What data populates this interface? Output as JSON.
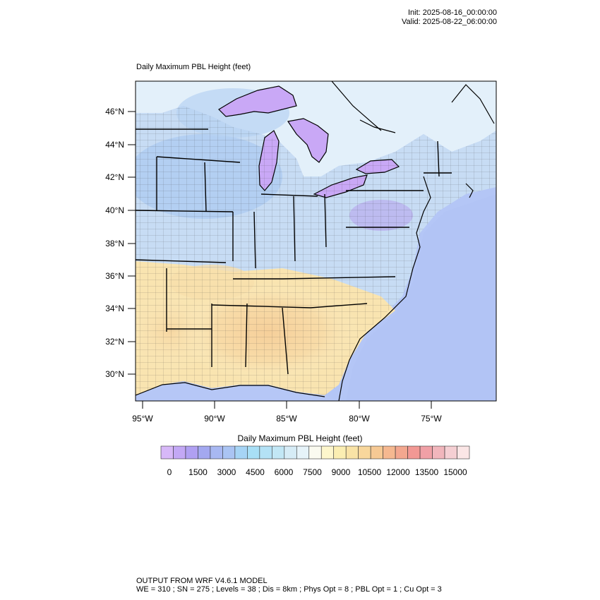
{
  "header": {
    "init": "Init: 2025-08-16_00:00:00",
    "valid": "Valid: 2025-08-22_06:00:00"
  },
  "map": {
    "title": "Daily Maximum PBL Height   (feet)",
    "lat_labels": [
      "46°N",
      "44°N",
      "42°N",
      "40°N",
      "38°N",
      "36°N",
      "34°N",
      "32°N",
      "30°N"
    ],
    "lon_labels": [
      "95°W",
      "90°W",
      "85°W",
      "80°W",
      "75°W"
    ]
  },
  "colorbar": {
    "title": "Daily Maximum PBL Height  (feet)",
    "tick_labels": [
      "0",
      "1500",
      "3000",
      "4500",
      "6000",
      "7500",
      "9000",
      "10500",
      "12000",
      "13500",
      "15000"
    ],
    "colors": [
      "#d7b8f8",
      "#c3a8f5",
      "#b0a0f2",
      "#a3a8f0",
      "#a8b8f2",
      "#aac4f3",
      "#a6d4f5",
      "#a8dff6",
      "#b4e2f6",
      "#c2e7f5",
      "#d6ecf6",
      "#e6f3f9",
      "#fafaf0",
      "#fdf6cc",
      "#fbeeb2",
      "#f9e3a6",
      "#f8d79c",
      "#f6c994",
      "#f5b890",
      "#f3a78f",
      "#f29894",
      "#f0a0a6",
      "#f1b6bc",
      "#f5cfd3",
      "#fbe6e6"
    ]
  },
  "footer": {
    "line1": "OUTPUT FROM WRF V4.6.1 MODEL",
    "line2": "WE = 310 ; SN = 275 ; Levels = 38 ; Dis = 8km ; Phys Opt = 8 ; PBL Opt = 1 ; Cu Opt = 3"
  }
}
